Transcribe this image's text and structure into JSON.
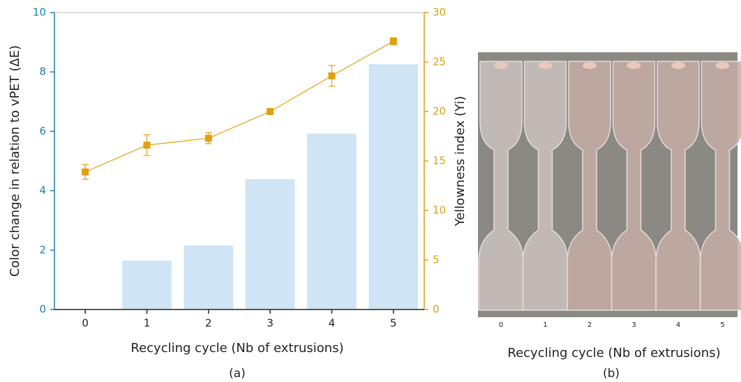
{
  "chart_data": {
    "type": "combo",
    "caption": "(a)",
    "xlabel": "Recycling cycle (Nb of extrusions)",
    "ylabel": "Color change in relation to vPET (ΔE)",
    "y2label": "Yellowness index (Yi)",
    "categories": [
      "0",
      "1",
      "2",
      "3",
      "4",
      "5"
    ],
    "ylim": [
      0,
      10
    ],
    "yticks": [
      0,
      2,
      4,
      6,
      8,
      10
    ],
    "ycolor": "#1f7fae",
    "y2lim": [
      0,
      30
    ],
    "y2ticks": [
      0,
      5,
      10,
      15,
      20,
      25,
      30
    ],
    "y2color": "#d9a01a",
    "series": [
      {
        "type": "bar",
        "color": "#cfe4f4",
        "values": [
          0,
          1.65,
          2.16,
          4.39,
          5.92,
          8.26
        ]
      },
      {
        "type": "line",
        "axis": "y2",
        "color": "#e0a010",
        "values": [
          13.9,
          16.6,
          17.3,
          20.0,
          23.6,
          27.1
        ],
        "errors": [
          0.75,
          1.05,
          0.55,
          0.2,
          1.05,
          0.35
        ]
      }
    ]
  },
  "photo": {
    "ticks": [
      "0",
      "1",
      "2",
      "3",
      "4",
      "5"
    ],
    "xlabel": "Recycling cycle (Nb of extrusions)",
    "caption": "(b)"
  }
}
